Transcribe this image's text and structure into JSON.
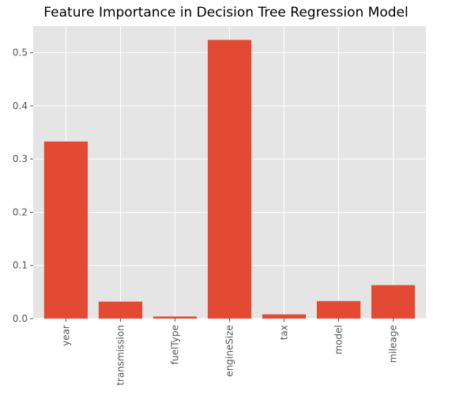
{
  "chart_data": {
    "type": "bar",
    "title": "Feature Importance in Decision Tree Regression Model",
    "xlabel": "",
    "ylabel": "",
    "categories": [
      "year",
      "transmission",
      "fuelType",
      "engineSize",
      "tax",
      "model",
      "mileage"
    ],
    "values": [
      0.333,
      0.032,
      0.004,
      0.524,
      0.008,
      0.033,
      0.063
    ],
    "ylim": [
      0,
      0.55
    ],
    "yticks": [
      0.0,
      0.1,
      0.2,
      0.3,
      0.4,
      0.5
    ],
    "ytick_labels": [
      "0.0",
      "0.1",
      "0.2",
      "0.3",
      "0.4",
      "0.5"
    ],
    "grid": true,
    "style": "ggplot",
    "colors": {
      "bar": "#E24A33",
      "background": "#E5E5E5",
      "grid": "#FFFFFF"
    }
  }
}
